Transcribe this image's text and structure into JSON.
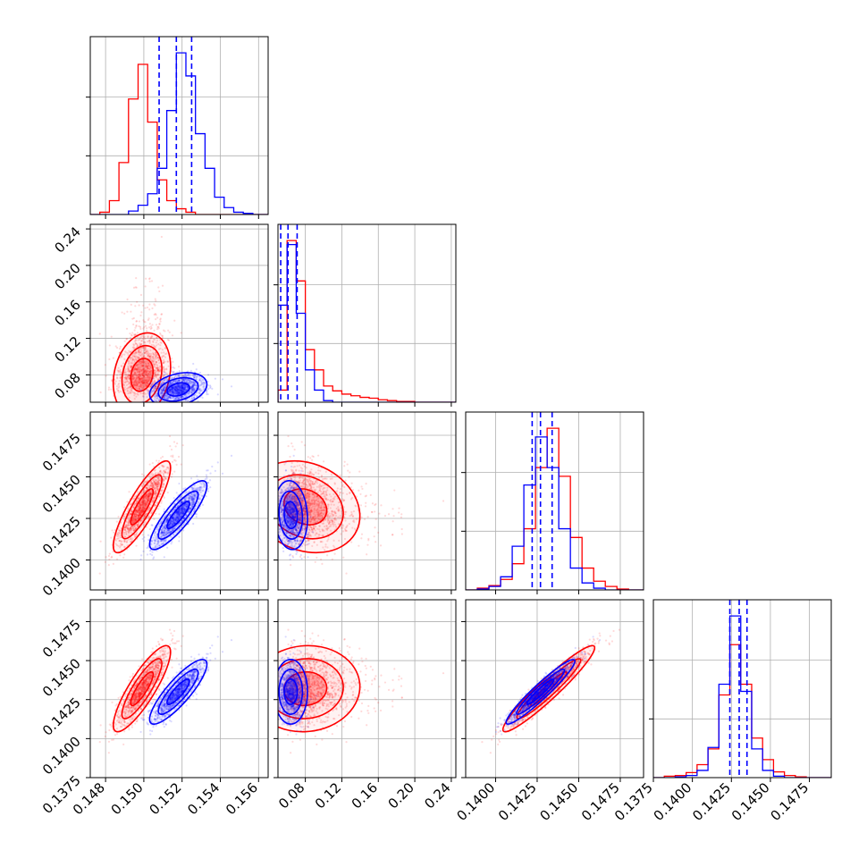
{
  "chart_data": {
    "type": "corner",
    "grid": true,
    "series": [
      {
        "color": "#ff0000"
      },
      {
        "color": "#0000ff"
      }
    ],
    "params": [
      {
        "ticks": [
          "0.148",
          "0.150",
          "0.152",
          "0.154",
          "0.156"
        ],
        "range": [
          0.1472,
          0.1565
        ]
      },
      {
        "ticks": [
          "0.08",
          "0.12",
          "0.16",
          "0.20",
          "0.24"
        ],
        "range": [
          0.05,
          0.245
        ]
      },
      {
        "ticks": [
          "0.1400",
          "0.1425",
          "0.1450",
          "0.1475"
        ],
        "range": [
          0.1382,
          0.1489
        ]
      },
      {
        "ticks": [
          "0.1375",
          "0.1400",
          "0.1425",
          "0.1450",
          "0.1475"
        ],
        "range": [
          0.1375,
          0.1489
        ]
      }
    ],
    "hist": [
      {
        "edges": [
          0.1472,
          0.1477,
          0.1482,
          0.1487,
          0.1492,
          0.1497,
          0.1502,
          0.1507,
          0.1512,
          0.1517,
          0.1522,
          0.1527,
          0.1532,
          0.1537,
          0.1542,
          0.1547,
          0.1552,
          0.1557,
          0.1562,
          0.1565
        ],
        "red": [
          0,
          2,
          12,
          45,
          100,
          130,
          80,
          30,
          12,
          5,
          2,
          0,
          0,
          0,
          0,
          0,
          0,
          0,
          0
        ],
        "blue": [
          0,
          0,
          0,
          0,
          3,
          8,
          18,
          40,
          90,
          140,
          120,
          70,
          40,
          15,
          6,
          2,
          1,
          0,
          0
        ],
        "lines": {
          "blue": [
            0.1508,
            0.1517,
            0.1525
          ]
        }
      },
      {
        "edges": [
          0.05,
          0.06,
          0.07,
          0.08,
          0.09,
          0.1,
          0.11,
          0.12,
          0.13,
          0.14,
          0.15,
          0.16,
          0.17,
          0.18,
          0.19,
          0.2,
          0.21,
          0.22,
          0.23,
          0.24,
          0.245
        ],
        "red": [
          15,
          200,
          150,
          65,
          40,
          20,
          14,
          10,
          8,
          6,
          5,
          3,
          2,
          1,
          1,
          0,
          0,
          0,
          0,
          0
        ],
        "blue": [
          120,
          195,
          110,
          40,
          15,
          2,
          0,
          0,
          0,
          0,
          0,
          0,
          0,
          0,
          0,
          0,
          0,
          0,
          0,
          0
        ],
        "lines": {
          "blue": [
            0.053,
            0.061,
            0.071
          ]
        }
      },
      {
        "edges": [
          0.1382,
          0.1389,
          0.1396,
          0.1403,
          0.141,
          0.1417,
          0.1424,
          0.1431,
          0.1438,
          0.1445,
          0.1452,
          0.1459,
          0.1466,
          0.1473,
          0.148,
          0.1489
        ],
        "red": [
          0,
          2,
          5,
          12,
          30,
          70,
          140,
          185,
          130,
          60,
          25,
          10,
          4,
          1,
          0
        ],
        "blue": [
          0,
          1,
          4,
          15,
          50,
          120,
          175,
          140,
          70,
          25,
          8,
          2,
          0,
          0,
          0
        ],
        "lines": {
          "blue": [
            0.1422,
            0.1427,
            0.1434
          ]
        }
      },
      {
        "edges": [
          0.1375,
          0.1382,
          0.1389,
          0.1396,
          0.1403,
          0.141,
          0.1417,
          0.1424,
          0.1431,
          0.1438,
          0.1445,
          0.1452,
          0.1459,
          0.1466,
          0.1473,
          0.148,
          0.1489
        ],
        "red": [
          0,
          2,
          3,
          7,
          18,
          40,
          115,
          185,
          130,
          55,
          25,
          8,
          3,
          1,
          0,
          0
        ],
        "blue": [
          0,
          0,
          1,
          3,
          10,
          42,
          130,
          225,
          120,
          40,
          10,
          2,
          0,
          0,
          0,
          0
        ],
        "lines": {
          "blue": [
            0.1424,
            0.143,
            0.1435
          ]
        }
      }
    ],
    "scatter_dists": [
      {
        "color": "#ff0000",
        "mean": [
          0.1499,
          0.08,
          0.1432,
          0.1432
        ],
        "sd": [
          0.00065,
          0.026,
          0.0012,
          0.0012
        ],
        "corr": [
          0.2,
          0.85,
          0.85,
          -0.2,
          0.05,
          0.95
        ]
      },
      {
        "color": "#0000ff",
        "mean": [
          0.1518,
          0.064,
          0.1427,
          0.143
        ],
        "sd": [
          0.00065,
          0.008,
          0.0009,
          0.0009
        ],
        "corr": [
          0.3,
          0.85,
          0.85,
          -0.1,
          0.0,
          0.95
        ]
      }
    ]
  }
}
